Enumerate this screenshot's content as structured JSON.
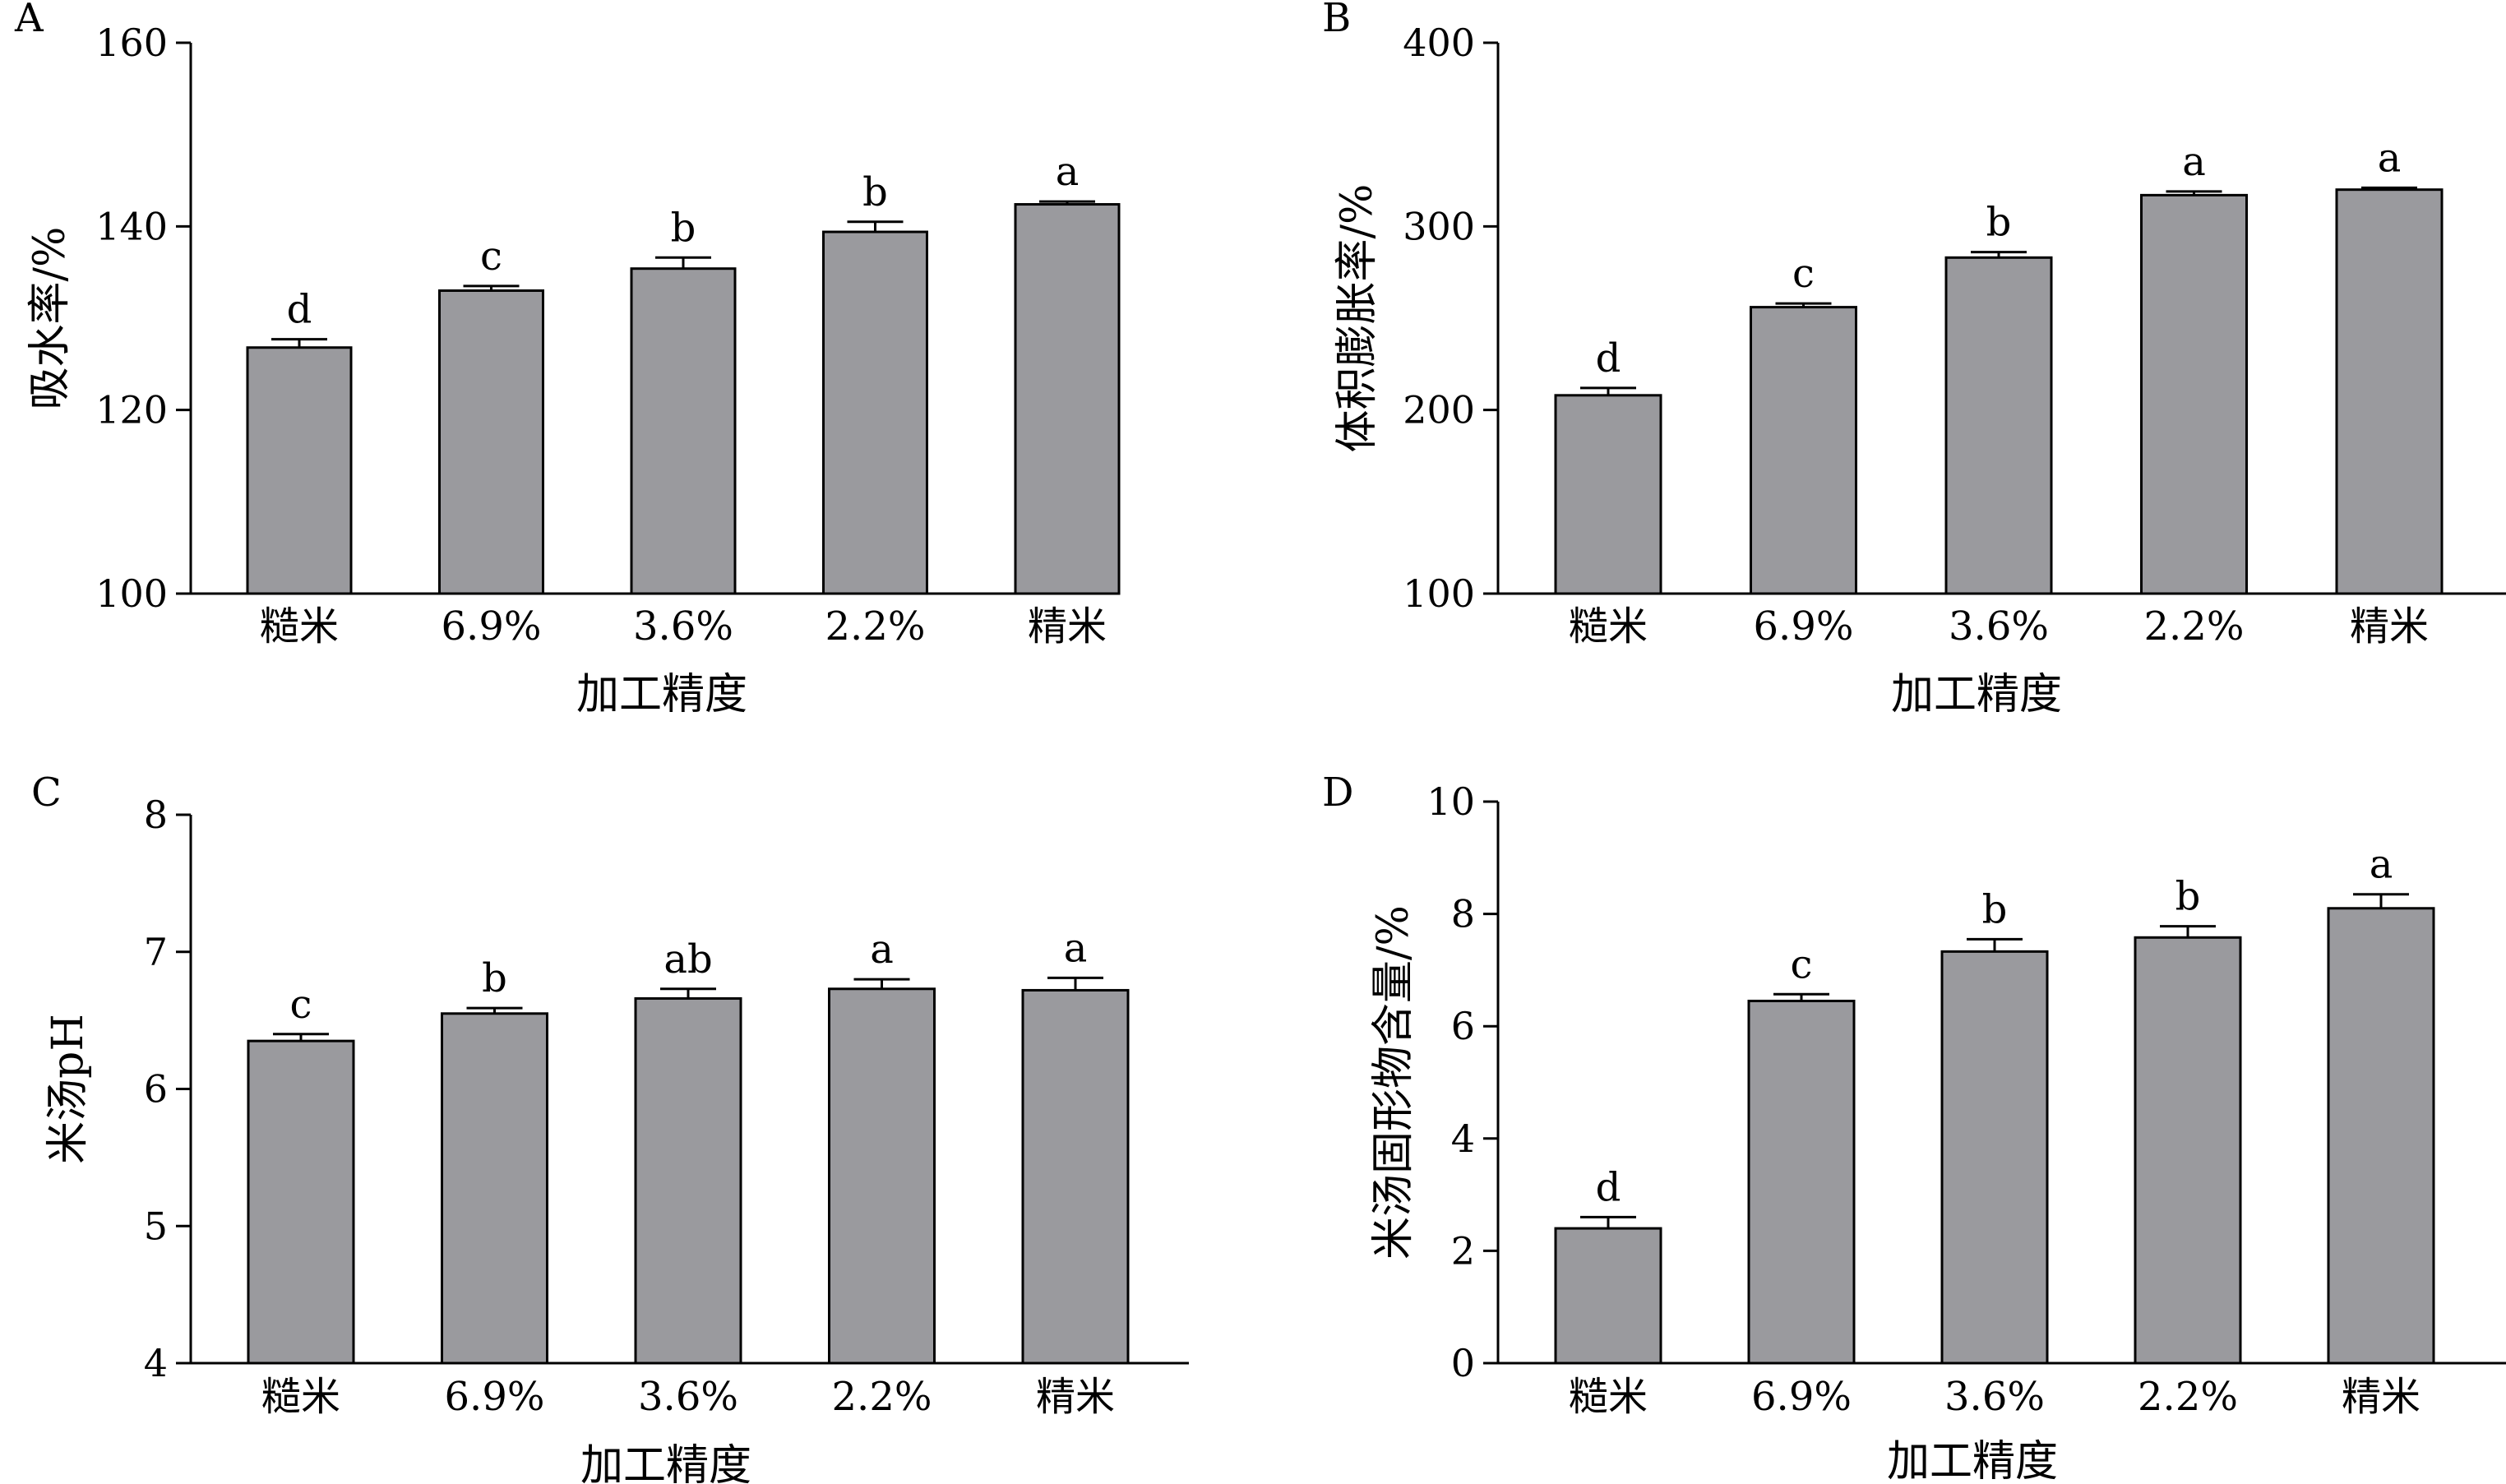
{
  "figure": {
    "bar_color": "#9a9a9e",
    "bar_edge_color": "#000000",
    "axis_color": "#000000"
  },
  "chart_data": [
    {
      "panel": "A",
      "type": "bar",
      "categories": [
        "糙米",
        "6.9%",
        "3.6%",
        "2.2%",
        "精米"
      ],
      "values": [
        126.8,
        133.0,
        135.4,
        139.4,
        142.4
      ],
      "errors": [
        0.9,
        0.5,
        1.2,
        1.1,
        0.3
      ],
      "significance": [
        "d",
        "c",
        "b",
        "b",
        "a"
      ],
      "xlabel": "加工精度",
      "ylabel": "吸水率/%",
      "ylim": [
        100,
        160
      ],
      "yticks": [
        100,
        120,
        140,
        160
      ]
    },
    {
      "panel": "B",
      "type": "bar",
      "categories": [
        "糙米",
        "6.9%",
        "3.6%",
        "2.2%",
        "精米"
      ],
      "values": [
        208,
        256,
        283,
        317,
        320
      ],
      "errors": [
        4,
        2,
        3,
        2,
        1
      ],
      "significance": [
        "d",
        "c",
        "b",
        "a",
        "a"
      ],
      "xlabel": "加工精度",
      "ylabel": "体积膨胀率/%",
      "ylim": [
        100,
        400
      ],
      "yticks": [
        100,
        200,
        300,
        400
      ]
    },
    {
      "panel": "C",
      "type": "bar",
      "categories": [
        "糙米",
        "6.9%",
        "3.6%",
        "2.2%",
        "精米"
      ],
      "values": [
        6.35,
        6.55,
        6.66,
        6.73,
        6.72
      ],
      "errors": [
        0.05,
        0.04,
        0.07,
        0.07,
        0.09
      ],
      "significance": [
        "c",
        "b",
        "ab",
        "a",
        "a"
      ],
      "xlabel": "加工精度",
      "ylabel": "米汤pH",
      "ylim": [
        4,
        8
      ],
      "yticks": [
        4,
        5,
        6,
        7,
        8
      ]
    },
    {
      "panel": "D",
      "type": "bar",
      "categories": [
        "糙米",
        "6.9%",
        "3.6%",
        "2.2%",
        "精米"
      ],
      "values": [
        2.4,
        6.45,
        7.33,
        7.58,
        8.1
      ],
      "errors": [
        0.2,
        0.12,
        0.22,
        0.2,
        0.25
      ],
      "significance": [
        "d",
        "c",
        "b",
        "b",
        "a"
      ],
      "xlabel": "加工精度",
      "ylabel": "米汤固形物含量/%",
      "ylim": [
        0,
        10
      ],
      "yticks": [
        0,
        2,
        4,
        6,
        8,
        10
      ]
    }
  ]
}
